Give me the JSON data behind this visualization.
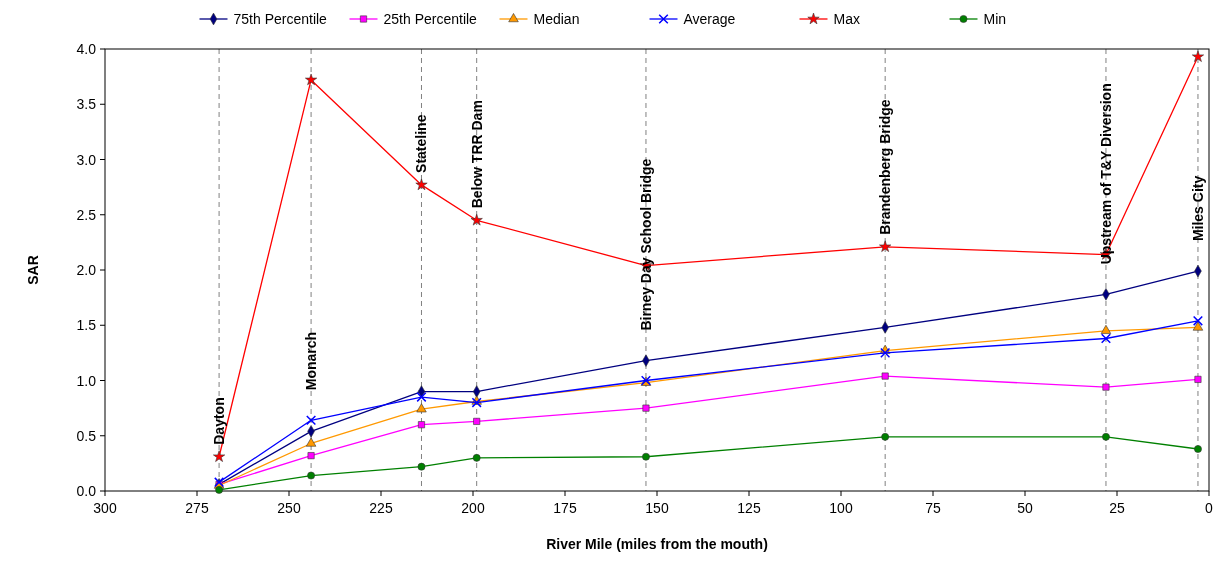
{
  "chart_data": {
    "type": "line",
    "xlabel": "River Mile (miles from the mouth)",
    "ylabel": "SAR",
    "x": [
      269,
      244,
      214,
      199,
      153,
      88,
      28,
      3
    ],
    "xlim": [
      300,
      0
    ],
    "xticks": [
      300,
      275,
      250,
      225,
      200,
      175,
      150,
      125,
      100,
      75,
      50,
      25,
      0
    ],
    "ylim": [
      0,
      4
    ],
    "yticks": [
      {
        "value": 0,
        "label": "0.0"
      },
      {
        "value": 0.5,
        "label": "0.5"
      },
      {
        "value": 1,
        "label": "1.0"
      },
      {
        "value": 1.5,
        "label": "1.5"
      },
      {
        "value": 2,
        "label": "2.0"
      },
      {
        "value": 2.5,
        "label": "2.5"
      },
      {
        "value": 3,
        "label": "3.0"
      },
      {
        "value": 3.5,
        "label": "3.5"
      },
      {
        "value": 4,
        "label": "4.0"
      }
    ],
    "legend": "top",
    "grid": false,
    "series": [
      {
        "name": "75th Percentile",
        "color": "#000080",
        "marker": "diamond",
        "values": [
          0.06,
          0.54,
          0.9,
          0.9,
          1.18,
          1.48,
          1.78,
          1.99
        ]
      },
      {
        "name": "25th Percentile",
        "color": "#ff00ff",
        "marker": "square",
        "values": [
          0.06,
          0.32,
          0.6,
          0.63,
          0.75,
          1.04,
          0.94,
          1.01
        ]
      },
      {
        "name": "Median",
        "color": "#ff9900",
        "marker": "triangle",
        "values": [
          0.05,
          0.43,
          0.74,
          0.81,
          0.98,
          1.27,
          1.45,
          1.48
        ]
      },
      {
        "name": "Average",
        "color": "#0000ff",
        "marker": "cross",
        "values": [
          0.08,
          0.64,
          0.85,
          0.8,
          1.0,
          1.25,
          1.38,
          1.54
        ]
      },
      {
        "name": "Max",
        "color": "#ff0000",
        "marker": "star",
        "values": [
          0.31,
          3.72,
          2.77,
          2.45,
          2.04,
          2.21,
          2.14,
          3.93
        ]
      },
      {
        "name": "Min",
        "color": "#008000",
        "marker": "circle",
        "values": [
          0.01,
          0.14,
          0.22,
          0.3,
          0.31,
          0.49,
          0.49,
          0.38
        ]
      }
    ],
    "ref_lines": [
      {
        "axis": "x",
        "value": 269,
        "label": "Dayton",
        "color": "#808080",
        "line_style": "dashed"
      },
      {
        "axis": "x",
        "value": 244,
        "label": "Monarch",
        "color": "#808080",
        "line_style": "dashed"
      },
      {
        "axis": "x",
        "value": 214,
        "label": "Stateline",
        "color": "#808080",
        "line_style": "dashed"
      },
      {
        "axis": "x",
        "value": 199,
        "label": "Below TRR Dam",
        "color": "#808080",
        "line_style": "dashed"
      },
      {
        "axis": "x",
        "value": 153,
        "label": "Birney Day School Bridge",
        "color": "#808080",
        "line_style": "dashed"
      },
      {
        "axis": "x",
        "value": 88,
        "label": "Brandenberg Bridge",
        "color": "#808080",
        "line_style": "dashed"
      },
      {
        "axis": "x",
        "value": 28,
        "label": "Upstream of T&Y Diversion",
        "color": "#808080",
        "line_style": "dashed"
      },
      {
        "axis": "x",
        "value": 3,
        "label": "Miles City",
        "color": "#808080",
        "line_style": "dashed"
      }
    ]
  }
}
